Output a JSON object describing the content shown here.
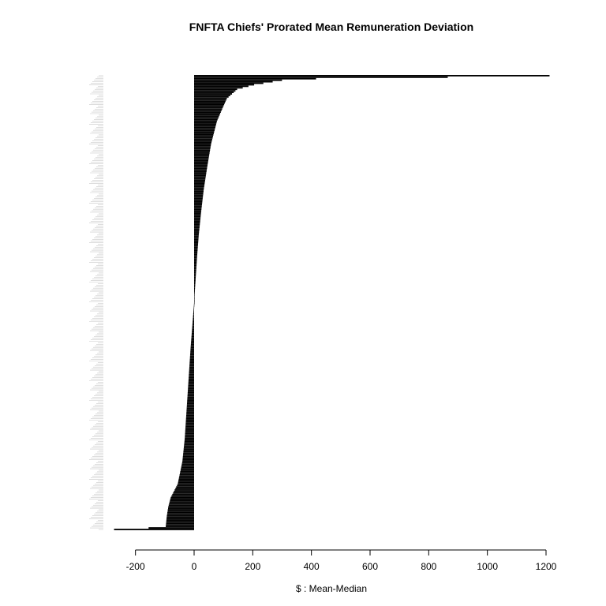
{
  "chart_data": {
    "type": "bar",
    "orientation": "horizontal",
    "title": "FNFTA Chiefs' Prorated Mean Remuneration Deviation",
    "xlabel": "$ : Mean-Median",
    "ylabel": "",
    "xlim": [
      -270,
      1215
    ],
    "x_ticks": [
      -200,
      0,
      200,
      400,
      600,
      800,
      1000,
      1200
    ],
    "x_tick_labels": [
      "-200",
      "0",
      "200",
      "400",
      "600",
      "800",
      "1000",
      "1200"
    ],
    "grid": false,
    "category_labels": "unreadable",
    "n_bars": 300,
    "quantile_curve": [
      [
        0.0,
        -273
      ],
      [
        0.005,
        -97
      ],
      [
        0.03,
        -93
      ],
      [
        0.05,
        -88
      ],
      [
        0.07,
        -80
      ],
      [
        0.1,
        -56
      ],
      [
        0.15,
        -40
      ],
      [
        0.2,
        -32
      ],
      [
        0.3,
        -22
      ],
      [
        0.4,
        -12
      ],
      [
        0.5,
        0
      ],
      [
        0.55,
        5
      ],
      [
        0.6,
        10
      ],
      [
        0.65,
        16
      ],
      [
        0.7,
        24
      ],
      [
        0.75,
        33
      ],
      [
        0.8,
        45
      ],
      [
        0.85,
        58
      ],
      [
        0.9,
        78
      ],
      [
        0.93,
        98
      ],
      [
        0.95,
        112
      ],
      [
        0.97,
        147
      ],
      [
        0.98,
        205
      ],
      [
        0.99,
        300
      ],
      [
        0.994,
        440
      ],
      [
        0.997,
        920
      ],
      [
        1.0,
        1212
      ]
    ],
    "bar_color": "#000000"
  }
}
